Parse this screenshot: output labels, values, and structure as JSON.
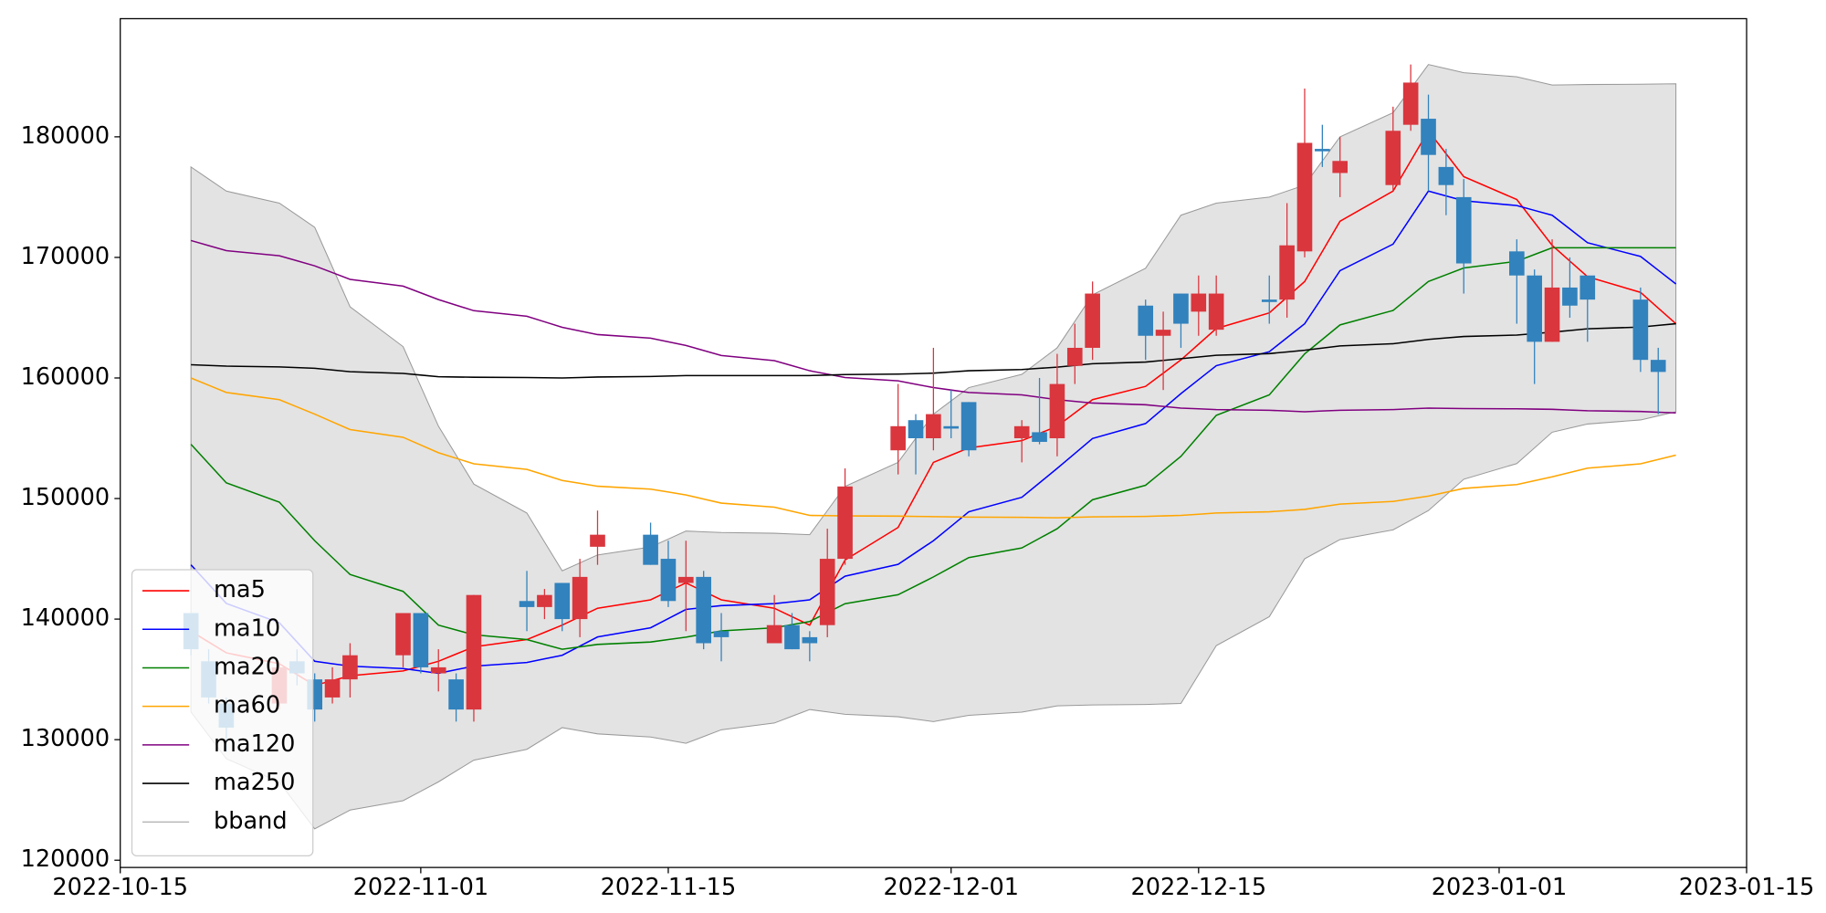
{
  "chart_data": {
    "type": "candlestick",
    "x": [
      "2022-10-19",
      "2022-10-20",
      "2022-10-21",
      "2022-10-24",
      "2022-10-25",
      "2022-10-26",
      "2022-10-27",
      "2022-10-28",
      "2022-10-31",
      "2022-11-01",
      "2022-11-02",
      "2022-11-03",
      "2022-11-04",
      "2022-11-07",
      "2022-11-08",
      "2022-11-09",
      "2022-11-10",
      "2022-11-11",
      "2022-11-14",
      "2022-11-15",
      "2022-11-16",
      "2022-11-17",
      "2022-11-18",
      "2022-11-21",
      "2022-11-22",
      "2022-11-23",
      "2022-11-24",
      "2022-11-25",
      "2022-11-28",
      "2022-11-29",
      "2022-11-30",
      "2022-12-01",
      "2022-12-02",
      "2022-12-05",
      "2022-12-06",
      "2022-12-07",
      "2022-12-08",
      "2022-12-09",
      "2022-12-12",
      "2022-12-13",
      "2022-12-14",
      "2022-12-15",
      "2022-12-16",
      "2022-12-19",
      "2022-12-20",
      "2022-12-21",
      "2022-12-22",
      "2022-12-23",
      "2022-12-26",
      "2022-12-27",
      "2022-12-28",
      "2022-12-29",
      "2022-12-30",
      "2023-01-02",
      "2023-01-03",
      "2023-01-04",
      "2023-01-05",
      "2023-01-06",
      "2023-01-09",
      "2023-01-10",
      "2023-01-11"
    ],
    "open": [
      140500,
      136500,
      133000,
      133000,
      136500,
      135000,
      133500,
      135000,
      137000,
      140500,
      135500,
      135000,
      132500,
      141500,
      141000,
      143000,
      140000,
      146000,
      147000,
      145000,
      143000,
      143500,
      139000,
      138000,
      139500,
      138500,
      139500,
      145000,
      154000,
      156500,
      155000,
      156000,
      158000,
      155000,
      155500,
      155000,
      161000,
      162500,
      166000,
      163500,
      167000,
      165500,
      164000,
      166500,
      166500,
      170500,
      179000,
      177000,
      176000,
      181000,
      181500,
      177500,
      175000,
      170500,
      168500,
      163000,
      167500,
      168500,
      166500,
      161500,
      null
    ],
    "high": [
      140500,
      137500,
      133500,
      136500,
      137500,
      135500,
      136000,
      138000,
      140500,
      140500,
      137500,
      135500,
      142000,
      144000,
      142500,
      143000,
      145000,
      149000,
      148000,
      146500,
      146500,
      144000,
      140500,
      142000,
      140500,
      139000,
      147500,
      152500,
      159500,
      157000,
      162500,
      159000,
      158000,
      156500,
      160000,
      162000,
      164500,
      168000,
      166500,
      165500,
      167000,
      168500,
      168500,
      168500,
      174500,
      184000,
      181000,
      180000,
      182500,
      186000,
      183500,
      179000,
      176500,
      171500,
      169000,
      171500,
      170000,
      168500,
      167500,
      162500,
      null
    ],
    "low": [
      137000,
      133000,
      129000,
      132500,
      134500,
      131500,
      133000,
      133500,
      136000,
      135500,
      134000,
      131500,
      131500,
      139000,
      140000,
      139000,
      138500,
      144500,
      144500,
      141000,
      139000,
      137500,
      136500,
      138000,
      137500,
      136500,
      138500,
      144500,
      152000,
      152000,
      154000,
      155000,
      153500,
      153000,
      154500,
      153500,
      159500,
      161500,
      161500,
      159000,
      162500,
      163500,
      163500,
      164500,
      165000,
      170000,
      177500,
      175000,
      175500,
      180500,
      175500,
      173500,
      167000,
      164500,
      159500,
      163000,
      165000,
      163000,
      160500,
      157000,
      null
    ],
    "close": [
      137500,
      133500,
      131000,
      136000,
      135500,
      132500,
      135000,
      137000,
      140500,
      136000,
      136000,
      132500,
      142000,
      141000,
      142000,
      140000,
      143500,
      147000,
      144500,
      141500,
      143500,
      138000,
      138500,
      139500,
      137500,
      138000,
      145000,
      151000,
      156000,
      155000,
      157000,
      155800,
      154000,
      156000,
      154700,
      159500,
      162500,
      167000,
      163500,
      164000,
      164500,
      167000,
      167000,
      166300,
      171000,
      179500,
      178800,
      178000,
      180500,
      184500,
      178500,
      176000,
      169500,
      168500,
      163000,
      167500,
      166000,
      166500,
      161500,
      160500,
      null
    ],
    "up_color": "#d9363e",
    "down_color": "#3182bd",
    "series": [
      {
        "name": "ma5",
        "color": "#ff0000",
        "values": [
          139000,
          138100,
          137200,
          136300,
          135400,
          134500,
          134900,
          135300,
          135700,
          136100,
          136500,
          137100,
          137700,
          138300,
          138900,
          139500,
          140200,
          140900,
          141600,
          142300,
          143000,
          142300,
          141600,
          140900,
          140200,
          139500,
          142200,
          144900,
          147600,
          150300,
          153000,
          153600,
          154200,
          154800,
          155400,
          156000,
          157100,
          158200,
          159300,
          160400,
          161500,
          162800,
          164100,
          165400,
          166700,
          168000,
          170500,
          173000,
          175500,
          178000,
          180500,
          178600,
          176700,
          174800,
          172900,
          171000,
          169700,
          168400,
          167100,
          165800,
          164500
        ]
      },
      {
        "name": "ma10",
        "color": "#0000ff",
        "values": [
          144500,
          142900,
          141300,
          139700,
          138100,
          136500,
          136300,
          136100,
          135900,
          135700,
          135500,
          135800,
          136100,
          136400,
          136700,
          137000,
          137760,
          138520,
          139280,
          140040,
          140800,
          140960,
          141120,
          141280,
          141440,
          141600,
          142580,
          143560,
          144540,
          145520,
          146500,
          147700,
          148900,
          150100,
          151300,
          152500,
          153740,
          154980,
          156220,
          157460,
          158700,
          159860,
          161020,
          162180,
          163340,
          164500,
          166700,
          168900,
          171100,
          173300,
          175500,
          175100,
          174700,
          174300,
          173900,
          173500,
          172360,
          171220,
          170080,
          168940,
          167800
        ]
      },
      {
        "name": "ma20",
        "color": "#008000",
        "values": [
          154500,
          152900,
          151300,
          149700,
          148100,
          146500,
          145100,
          143700,
          142300,
          140900,
          139500,
          139100,
          138700,
          138300,
          137900,
          137500,
          137700,
          137900,
          138100,
          138300,
          138500,
          138760,
          139020,
          139280,
          139540,
          139800,
          140540,
          141280,
          142020,
          142760,
          143500,
          144300,
          145100,
          145900,
          146700,
          147500,
          148700,
          149900,
          151100,
          152300,
          153500,
          155200,
          156900,
          158600,
          160300,
          162000,
          163200,
          164400,
          165600,
          166800,
          168000,
          168560,
          169120,
          169680,
          170240,
          170800,
          170800,
          170800,
          170800,
          170800,
          170800
        ]
      },
      {
        "name": "ma60",
        "color": "#ffa500",
        "values": [
          160000,
          159400,
          158800,
          158200,
          157600,
          157000,
          156360,
          155720,
          155080,
          154440,
          153800,
          153340,
          152880,
          152420,
          151960,
          151500,
          151260,
          151020,
          150780,
          150540,
          150300,
          149960,
          149620,
          149280,
          148940,
          148600,
          148580,
          148560,
          148540,
          148520,
          148500,
          148480,
          148460,
          148440,
          148420,
          148400,
          148440,
          148480,
          148520,
          148560,
          148600,
          148700,
          148800,
          148900,
          149000,
          149100,
          149320,
          149540,
          149760,
          149980,
          150200,
          150520,
          150840,
          151160,
          151480,
          151800,
          152160,
          152520,
          152880,
          153240,
          153600
        ]
      },
      {
        "name": "ma120",
        "color": "#800080",
        "values": [
          171400,
          170980,
          170560,
          170140,
          169720,
          169300,
          168740,
          168180,
          167620,
          167060,
          166500,
          166040,
          165580,
          165120,
          164660,
          164200,
          163900,
          163600,
          163300,
          163000,
          162700,
          162280,
          161860,
          161440,
          161020,
          160600,
          160320,
          160040,
          159760,
          159480,
          159200,
          159000,
          158800,
          158600,
          158400,
          158200,
          158060,
          157920,
          157780,
          157640,
          157500,
          157440,
          157380,
          157320,
          157260,
          157200,
          157260,
          157320,
          157380,
          157440,
          157500,
          157480,
          157460,
          157440,
          157420,
          157400,
          157340,
          157280,
          157220,
          157160,
          157100
        ]
      },
      {
        "name": "ma250",
        "color": "#000000",
        "values": [
          161100,
          161040,
          160980,
          160920,
          160860,
          160800,
          160660,
          160520,
          160380,
          160240,
          160100,
          160080,
          160060,
          160040,
          160020,
          160000,
          160040,
          160080,
          160120,
          160160,
          160200,
          160200,
          160200,
          160200,
          160200,
          160200,
          160240,
          160280,
          160320,
          160360,
          160400,
          160500,
          160600,
          160700,
          160800,
          160900,
          161040,
          161180,
          161320,
          161460,
          161600,
          161740,
          161880,
          162020,
          162160,
          162300,
          162480,
          162660,
          162840,
          163020,
          163200,
          163320,
          163440,
          163560,
          163680,
          163800,
          163940,
          164080,
          164220,
          164360,
          164500
        ]
      }
    ],
    "band": {
      "name": "bband",
      "color": "#999999",
      "fill": "#e3e3e3",
      "upper": [
        177500,
        176500,
        175500,
        174500,
        173500,
        172500,
        169200,
        165900,
        162600,
        159300,
        156000,
        153600,
        151200,
        148800,
        146400,
        144000,
        144660,
        145320,
        145980,
        146640,
        147300,
        147240,
        147180,
        147120,
        147060,
        147000,
        149000,
        151000,
        153000,
        155000,
        157000,
        158100,
        159200,
        160300,
        161400,
        162500,
        164700,
        166900,
        169100,
        171300,
        173500,
        174000,
        174500,
        175000,
        175500,
        176000,
        178000,
        180000,
        182000,
        184000,
        186000,
        185660,
        185320,
        184980,
        184640,
        184300,
        184320,
        184340,
        184360,
        184380,
        184400
      ],
      "lower": [
        132300,
        130360,
        128420,
        126480,
        124540,
        122600,
        123380,
        124160,
        124940,
        125720,
        126500,
        127400,
        128300,
        129200,
        130100,
        131000,
        130740,
        130480,
        130220,
        129960,
        129700,
        130260,
        130820,
        131380,
        131940,
        132500,
        132300,
        132100,
        131900,
        131700,
        131500,
        131760,
        132020,
        132280,
        132540,
        132800,
        132840,
        132880,
        132920,
        132960,
        133000,
        135400,
        137800,
        140200,
        142600,
        145000,
        145800,
        146600,
        147400,
        148200,
        149000,
        150300,
        151600,
        152900,
        154200,
        155500,
        155840,
        156180,
        156520,
        156860,
        157200
      ]
    },
    "xlim": [
      "2022-10-15",
      "2023-01-15"
    ],
    "xticks": [
      "2022-10-15",
      "2022-11-01",
      "2022-11-15",
      "2022-12-01",
      "2022-12-15",
      "2023-01-01",
      "2023-01-15"
    ],
    "ylim": [
      119400,
      189800
    ],
    "yticks": [
      120000,
      130000,
      140000,
      150000,
      160000,
      170000,
      180000
    ],
    "legend": "lower left"
  }
}
